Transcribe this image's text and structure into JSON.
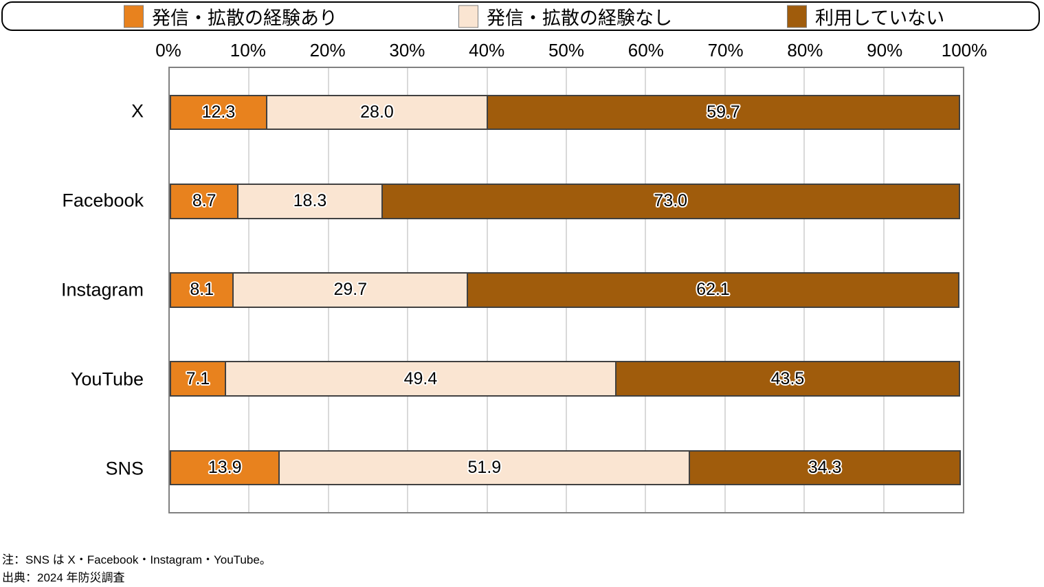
{
  "chart_data": {
    "type": "bar",
    "orientation": "horizontal",
    "stacked": true,
    "title": "",
    "categories": [
      "X",
      "Facebook",
      "Instagram",
      "YouTube",
      "SNS"
    ],
    "series": [
      {
        "name": "発信・拡散の経験あり",
        "color": "#E8821E",
        "values": [
          12.3,
          8.7,
          8.1,
          7.1,
          13.9
        ]
      },
      {
        "name": "発信・拡散の経験なし",
        "color": "#FAE5D2",
        "values": [
          28.0,
          18.3,
          29.7,
          49.4,
          51.9
        ]
      },
      {
        "name": "利用していない",
        "color": "#A05C0C",
        "values": [
          59.7,
          73.0,
          62.1,
          43.5,
          34.3
        ]
      }
    ],
    "x_ticks": [
      "0%",
      "10%",
      "20%",
      "30%",
      "40%",
      "50%",
      "60%",
      "70%",
      "80%",
      "90%",
      "100%"
    ],
    "xlim": [
      0,
      100
    ],
    "value_decimals": 1,
    "legend_position": "top",
    "grid": "vertical"
  },
  "colors": {
    "segment_border": "#404040",
    "plot_border": "#808080",
    "gridline": "#D9D9D9",
    "legend_border": "#000000",
    "value_text": "#000000",
    "value_outline": "#FFFFFF"
  },
  "notes": {
    "line1": "注：SNS は X・Facebook・Instagram・YouTube。",
    "line2": "出典：2024 年防災調査"
  }
}
